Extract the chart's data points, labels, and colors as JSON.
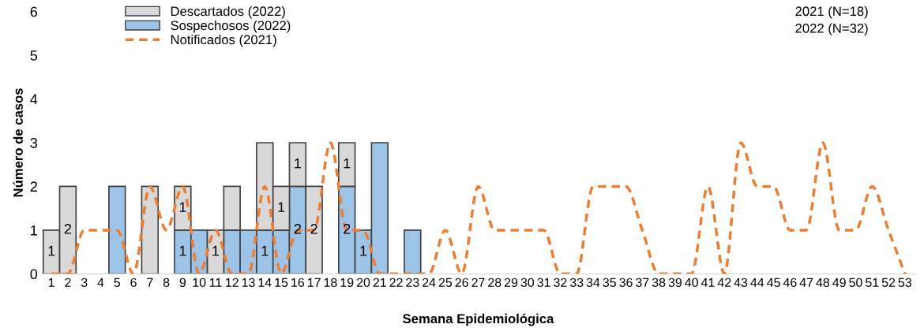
{
  "chart_data": {
    "type": "bar",
    "stacked": true,
    "xlabel": "Semana Epidemiológica",
    "ylabel": "Número de casos",
    "categories": [
      "1",
      "2",
      "3",
      "4",
      "5",
      "6",
      "7",
      "8",
      "9",
      "10",
      "11",
      "12",
      "13",
      "14",
      "15",
      "16",
      "17",
      "18",
      "19",
      "20",
      "21",
      "22",
      "23",
      "24",
      "25",
      "26",
      "27",
      "28",
      "29",
      "30",
      "31",
      "32",
      "33",
      "34",
      "35",
      "36",
      "37",
      "38",
      "39",
      "40",
      "41",
      "42",
      "43",
      "44",
      "45",
      "46",
      "47",
      "48",
      "49",
      "50",
      "51",
      "52",
      "53"
    ],
    "series": [
      {
        "name": "Sospechosos (2022)",
        "color": "#9dc3e6",
        "values": [
          null,
          null,
          null,
          null,
          2,
          null,
          null,
          null,
          1,
          1,
          null,
          1,
          1,
          1,
          1,
          2,
          null,
          null,
          2,
          1,
          3,
          null,
          1,
          null,
          null,
          null,
          null,
          null,
          null,
          null,
          null,
          null,
          null,
          null,
          null,
          null,
          null,
          null,
          null,
          null,
          null,
          null,
          null,
          null,
          null,
          null,
          null,
          null,
          null,
          null,
          null,
          null,
          null
        ],
        "value_labels": [
          null,
          null,
          null,
          null,
          null,
          null,
          null,
          null,
          "1",
          null,
          null,
          null,
          null,
          "1",
          null,
          "2",
          null,
          null,
          "2",
          "1",
          null,
          null,
          null,
          null,
          null,
          null,
          null,
          null,
          null,
          null,
          null,
          null,
          null,
          null,
          null,
          null,
          null,
          null,
          null,
          null,
          null,
          null,
          null,
          null,
          null,
          null,
          null,
          null,
          null,
          null,
          null,
          null,
          null
        ]
      },
      {
        "name": "Descartados (2022)",
        "color": "#d9d9d9",
        "values": [
          1,
          2,
          null,
          null,
          null,
          null,
          2,
          null,
          1,
          null,
          1,
          1,
          null,
          2,
          1,
          1,
          2,
          null,
          1,
          null,
          null,
          null,
          null,
          null,
          null,
          null,
          null,
          null,
          null,
          null,
          null,
          null,
          null,
          null,
          null,
          null,
          null,
          null,
          null,
          null,
          null,
          null,
          null,
          null,
          null,
          null,
          null,
          null,
          null,
          null,
          null,
          null,
          null
        ],
        "value_labels": [
          "1",
          "2",
          null,
          null,
          null,
          null,
          null,
          null,
          "1",
          null,
          "1",
          null,
          null,
          null,
          "1",
          "1",
          "2",
          null,
          "1",
          null,
          null,
          null,
          null,
          null,
          null,
          null,
          null,
          null,
          null,
          null,
          null,
          null,
          null,
          null,
          null,
          null,
          null,
          null,
          null,
          null,
          null,
          null,
          null,
          null,
          null,
          null,
          null,
          null,
          null,
          null,
          null,
          null,
          null
        ]
      },
      {
        "name": "Notificados (2021)",
        "type": "line",
        "color": "#ed7d31",
        "line_style": "dashed",
        "values": [
          0,
          0,
          1,
          1,
          1,
          0,
          2,
          1,
          2,
          0,
          1,
          0,
          0,
          2,
          0,
          1,
          1,
          3,
          1,
          1,
          0,
          0,
          0,
          0,
          1,
          0,
          2,
          1,
          1,
          1,
          1,
          0,
          0,
          2,
          2,
          2,
          1,
          0,
          0,
          0,
          2,
          0,
          3,
          2,
          2,
          1,
          1,
          3,
          1,
          1,
          2,
          1,
          0
        ]
      }
    ],
    "ylim": [
      0,
      6
    ],
    "yticks": [
      0,
      1,
      2,
      3,
      4,
      5,
      6
    ],
    "grid": false,
    "legend": "top left",
    "annotations": [
      "2021 (N=18)",
      "2022 (N=32)"
    ]
  }
}
